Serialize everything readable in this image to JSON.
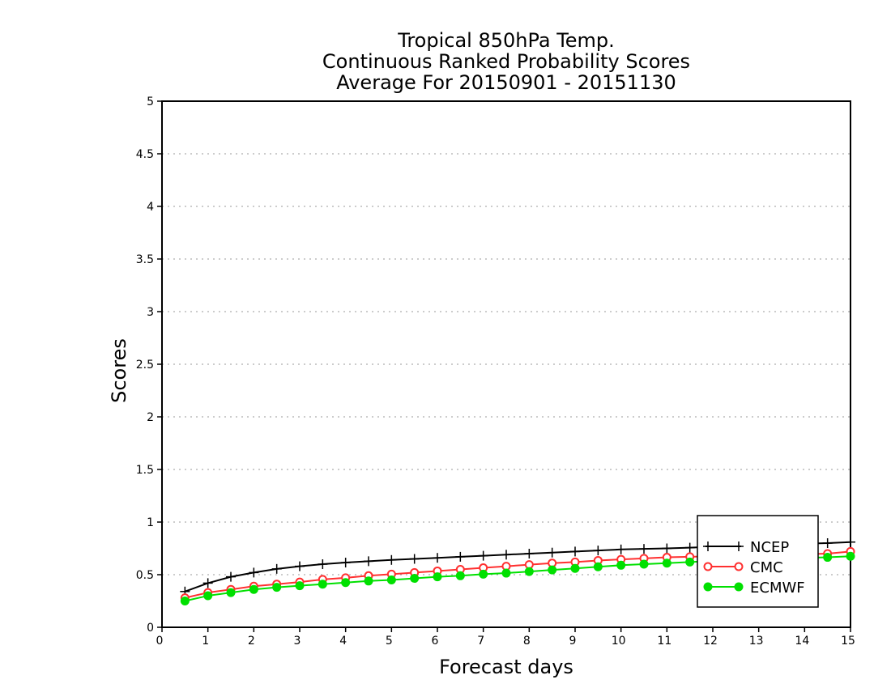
{
  "chart_data": {
    "type": "line",
    "title": [
      "Tropical 850hPa Temp.",
      "Continuous Ranked Probability Scores",
      "Average For 20150901 - 20151130"
    ],
    "xlabel": "Forecast days",
    "ylabel": "Scores",
    "xlim": [
      0,
      15
    ],
    "ylim": [
      0,
      5
    ],
    "xticks": [
      "0",
      "1",
      "2",
      "3",
      "4",
      "5",
      "6",
      "7",
      "8",
      "9",
      "10",
      "11",
      "12",
      "13",
      "14",
      "15"
    ],
    "yticks": [
      "0",
      "0.5",
      "1",
      "1.5",
      "2",
      "2.5",
      "3",
      "3.5",
      "4",
      "4.5",
      "5"
    ],
    "grid": "horizontal dotted",
    "legend_position": "bottom-right",
    "x": [
      0.5,
      1,
      1.5,
      2,
      2.5,
      3,
      3.5,
      4,
      4.5,
      5,
      5.5,
      6,
      6.5,
      7,
      7.5,
      8,
      8.5,
      9,
      9.5,
      10,
      10.5,
      11,
      11.5,
      12,
      12.5,
      13,
      13.5,
      14,
      14.5,
      15
    ],
    "series": [
      {
        "name": "NCEP",
        "color": "#000000",
        "marker": "plus",
        "values": [
          0.34,
          0.42,
          0.48,
          0.52,
          0.555,
          0.58,
          0.6,
          0.615,
          0.628,
          0.64,
          0.65,
          0.66,
          0.67,
          0.68,
          0.69,
          0.7,
          0.71,
          0.72,
          0.73,
          0.74,
          0.745,
          0.75,
          0.757,
          0.765,
          0.772,
          0.78,
          0.787,
          0.795,
          0.8,
          0.81
        ]
      },
      {
        "name": "CMC",
        "color": "#ff3030",
        "marker": "open-circle",
        "values": [
          0.28,
          0.33,
          0.36,
          0.39,
          0.41,
          0.43,
          0.455,
          0.47,
          0.49,
          0.505,
          0.52,
          0.535,
          0.55,
          0.565,
          0.58,
          0.595,
          0.61,
          0.62,
          0.635,
          0.645,
          0.655,
          0.665,
          0.67,
          0.675,
          0.68,
          0.685,
          0.69,
          0.695,
          0.7,
          0.72
        ]
      },
      {
        "name": "ECMWF",
        "color": "#00e000",
        "marker": "filled-circle",
        "values": [
          0.25,
          0.3,
          0.33,
          0.36,
          0.38,
          0.395,
          0.41,
          0.425,
          0.44,
          0.45,
          0.465,
          0.48,
          0.49,
          0.505,
          0.515,
          0.53,
          0.545,
          0.56,
          0.575,
          0.59,
          0.6,
          0.61,
          0.62,
          0.63,
          0.64,
          0.645,
          0.65,
          0.66,
          0.665,
          0.675
        ]
      }
    ]
  }
}
